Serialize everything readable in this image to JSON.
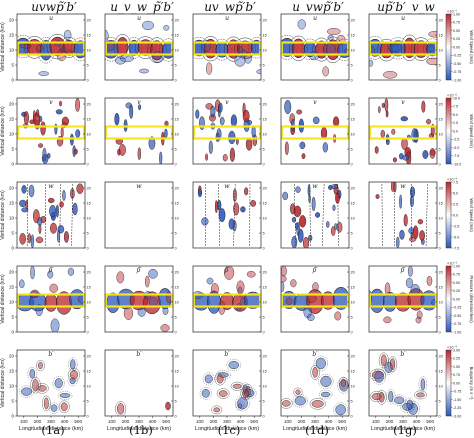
{
  "figure": {
    "column_titles": [
      "uvwp̃′b′",
      "u_v_w_p̃′b′",
      "uv_wp̃′b′",
      "u_vwp̃′b′",
      "up̃′b′_v_w"
    ],
    "row_variables": [
      "u",
      "v",
      "w",
      "p̃′",
      "b′"
    ],
    "panel_labels": [
      "(1a)",
      "(1b)",
      "(1c)",
      "(1d)",
      "(1g)"
    ],
    "y_axis_label": "Vertical distance (km)",
    "x_axis_label": "Longitudinal distance (km)",
    "highlight_color": "#f5e61c",
    "colormap": {
      "negative": "#2b55b8",
      "positive": "#b8262b",
      "neutral": "#ffffff"
    }
  },
  "chart_data": {
    "type": "heatmap",
    "layout": "5x5 grid of contour panels",
    "x": {
      "label": "Longitudinal distance (km)",
      "ticks": [
        100,
        200,
        300,
        400,
        500
      ],
      "lim": [
        50,
        550
      ]
    },
    "y": {
      "label": "Vertical distance (km)",
      "ticks": [
        0,
        5,
        10,
        15,
        20
      ],
      "lim": [
        0,
        22
      ]
    },
    "highlight_box_km": {
      "y_range": [
        8.5,
        12.5
      ],
      "rows": [
        "u",
        "v",
        "p̃′"
      ],
      "columns": "all"
    },
    "rows": [
      {
        "variable": "u",
        "colorbar_label": "Wind Speed (m/s)",
        "ticks": [
          "1.00",
          "0.75",
          "0.50",
          "0.25",
          "0.00",
          "-0.25",
          "-0.50",
          "-0.75",
          "-1.00"
        ],
        "exponent": "×10⁻¹"
      },
      {
        "variable": "v",
        "colorbar_label": "Wind Speed (m/s)",
        "ticks": [
          "10.0",
          "7.5",
          "5.0",
          "2.5",
          "0.0",
          "-2.5",
          "-5.0",
          "-7.5",
          "-10.0"
        ],
        "exponent": "×10⁻²"
      },
      {
        "variable": "w",
        "colorbar_label": "Wind Speed (m/s)",
        "ticks": [
          "7.5",
          "5.0",
          "2.5",
          "0.0",
          "-2.5",
          "-5.0",
          "-7.5"
        ],
        "exponent": "×10⁻³"
      },
      {
        "variable": "p̃′",
        "colorbar_label": "Pressure (dimensionless)",
        "ticks": [
          "1.00",
          "0.75",
          "0.50",
          "0.25",
          "0.00",
          "-0.25",
          "-0.50",
          "-0.75",
          "-1.00"
        ],
        "exponent": "×10⁻³"
      },
      {
        "variable": "b′",
        "colorbar_label": "Buoyancy (m s⁻²)",
        "ticks": [
          "3.00",
          "2.25",
          "1.50",
          "0.75",
          "0.00",
          "-0.75",
          "-1.50",
          "-2.25",
          "-3.00"
        ],
        "exponent": "×10⁻³"
      }
    ]
  }
}
